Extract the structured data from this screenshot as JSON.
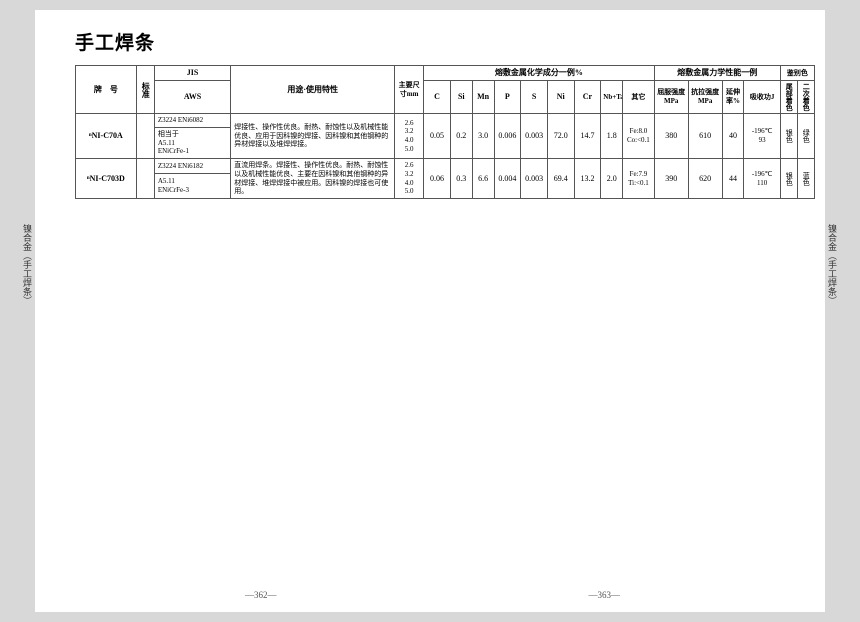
{
  "title": "手工焊条",
  "headers": {
    "grade": "牌　号",
    "std": "标准",
    "jis": "JIS",
    "aws": "AWS",
    "use": "用途·使用特性",
    "size": "主要尺寸mm",
    "chem_group": "熔敷金属化学成分一例%",
    "C": "C",
    "Si": "Si",
    "Mn": "Mn",
    "P": "P",
    "S": "S",
    "Ni": "Ni",
    "Cr": "Cr",
    "Nb": "Nb+Ta",
    "Other": "其它",
    "mech_group": "熔敷金属力学性能一例",
    "ys": "屈服强度MPa",
    "ts": "抗拉强度MPa",
    "el": "延伸率%",
    "cvn": "吸收功J",
    "id_group": "鉴别色",
    "id1": "尾部着色",
    "id2": "二次着色"
  },
  "rows": [
    {
      "grade": "ⁿNI-C70A",
      "jis": "Z3224 ENi6082",
      "aws": "相当于\nA5.11\nENiCrFe-1",
      "use": "焊接性、操作性优良。耐热、耐蚀性以及机械性能优良、应用于因科镍的焊接、因科镍和其他钢种的异材焊接以及堆焊焊接。",
      "size": "2.6\n3.2\n4.0\n5.0",
      "C": "0.05",
      "Si": "0.2",
      "Mn": "3.0",
      "P": "0.006",
      "S": "0.003",
      "Ni": "72.0",
      "Cr": "14.7",
      "Nb": "1.8",
      "Other": "Fe:8.0\nCo:<0.1",
      "ys": "380",
      "ts": "610",
      "el": "40",
      "cvn": "-196℃\n93",
      "id1": "银色",
      "id2": "绿色"
    },
    {
      "grade": "ⁿNI-C703D",
      "jis": "Z3224 ENi6182",
      "aws": "A5.11\nENiCrFe-3",
      "use": "直流用焊条。焊接性、操作性优良。耐热、耐蚀性以及机械性能优良、主要在因科镍和其他钢种的异材焊接、堆焊焊接中被应用。因科镍的焊接也可使用。",
      "size": "2.6\n3.2\n4.0\n5.0",
      "C": "0.06",
      "Si": "0.3",
      "Mn": "6.6",
      "P": "0.004",
      "S": "0.003",
      "Ni": "69.4",
      "Cr": "13.2",
      "Nb": "2.0",
      "Other": "Fe:7.9\nTi:<0.1",
      "ys": "390",
      "ts": "620",
      "el": "44",
      "cvn": "-196℃\n110",
      "id1": "银色",
      "id2": "蓝色"
    }
  ],
  "sidetab": "镍合金（手工焊条）",
  "sidetab_hl": "焊条",
  "pageL": "—362—",
  "pageR": "—363—"
}
